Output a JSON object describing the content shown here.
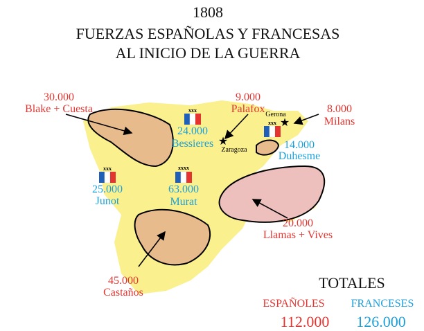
{
  "title": {
    "year": "1808",
    "line1": "FUERZAS ESPAÑOLAS Y FRANCESAS",
    "line2": "AL INICIO DE LA GUERRA"
  },
  "places": {
    "zaragoza": "Zaragoza",
    "gerona": "Gerona"
  },
  "spanish_armies": [
    {
      "troops": "30.000",
      "commander": "Blake + Cuesta"
    },
    {
      "troops": "9.000",
      "commander": "Palafox"
    },
    {
      "troops": "8.000",
      "commander": "Milans"
    },
    {
      "troops": "20.000",
      "commander": "Llamas + Vives"
    },
    {
      "troops": "45.000",
      "commander": "Castaños"
    }
  ],
  "french_armies": [
    {
      "troops": "24.000",
      "commander": "Bessieres",
      "rank": "xxx"
    },
    {
      "troops": "14.000",
      "commander": "Duhesme",
      "rank": "xxx"
    },
    {
      "troops": "25.000",
      "commander": "Junot",
      "rank": "xxx"
    },
    {
      "troops": "63.000",
      "commander": "Murat",
      "rank": "xxxx"
    }
  ],
  "totals": {
    "heading": "TOTALES",
    "spanish_label": "ESPAÑOLES",
    "french_label": "FRANCESES",
    "spanish_total": "112.000",
    "french_total": "126.000"
  }
}
